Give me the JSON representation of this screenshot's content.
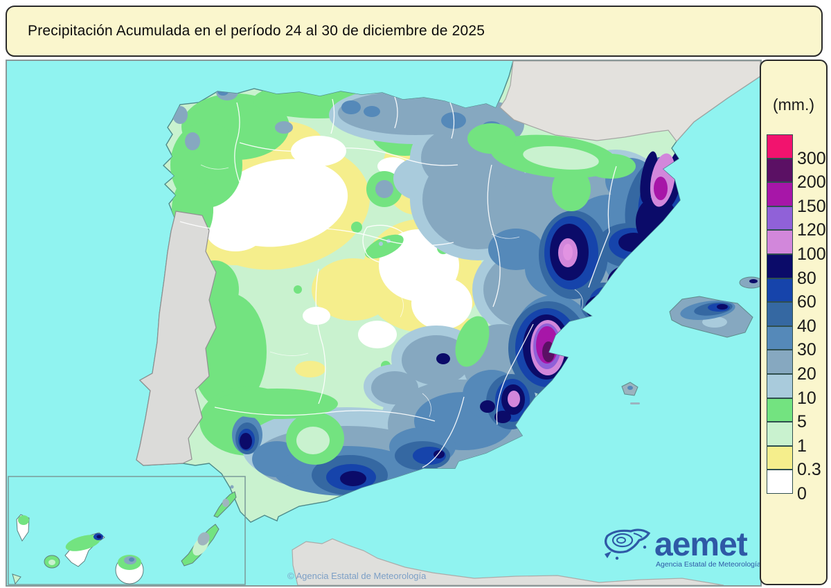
{
  "title": "Precipitación Acumulada en el período 24 al 30 de diciembre de 2025",
  "legend": {
    "unit_label": "(mm.)",
    "levels": [
      {
        "label": "300",
        "color": "#F2136E"
      },
      {
        "label": "200",
        "color": "#5B1064"
      },
      {
        "label": "150",
        "color": "#A716A8"
      },
      {
        "label": "120",
        "color": "#9061D8"
      },
      {
        "label": "100",
        "color": "#D287DB"
      },
      {
        "label": "80",
        "color": "#0B0B69"
      },
      {
        "label": "60",
        "color": "#1644AB"
      },
      {
        "label": "40",
        "color": "#3568A2"
      },
      {
        "label": "30",
        "color": "#5589B9"
      },
      {
        "label": "20",
        "color": "#86A8C0"
      },
      {
        "label": "10",
        "color": "#A9CBDC"
      },
      {
        "label": "5",
        "color": "#73E380"
      },
      {
        "label": "1",
        "color": "#C9F2CF"
      },
      {
        "label": "0.3",
        "color": "#F5EE8C"
      },
      {
        "label": "0",
        "color": "#FFFFFF"
      }
    ]
  },
  "map": {
    "copyright": "© Agencia Estatal de Meteorología"
  },
  "logo": {
    "wordmark": "aemet",
    "subtitle": "Agencia Estatal de Meteorología"
  },
  "palette": {
    "sea": "#90F3F0",
    "no_data_land": "#DDDDDB",
    "panel_background": "#FAF6CD",
    "logo_blue": "#2E59A6",
    "copyright_blue": "#7C9FC6",
    "coast_stroke": "#4E8A8A"
  }
}
